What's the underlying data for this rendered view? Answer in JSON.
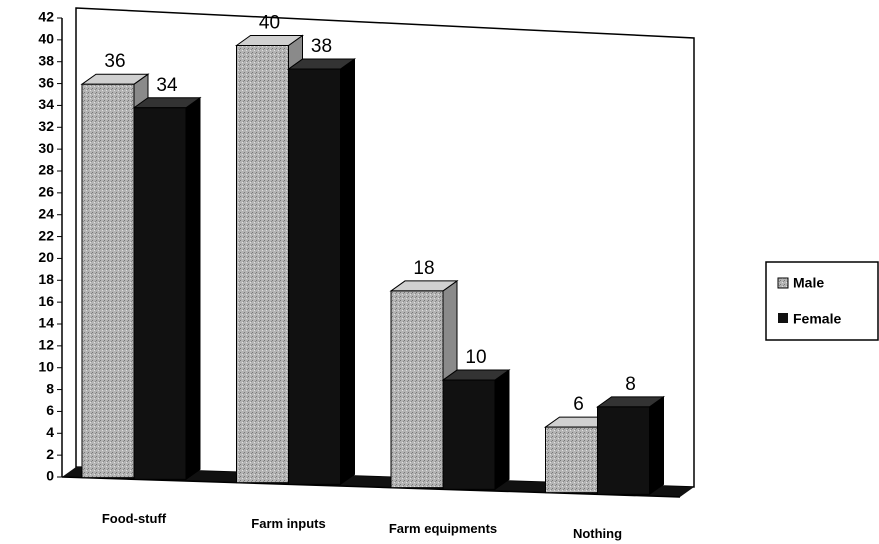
{
  "chart_data": {
    "type": "bar",
    "categories": [
      "Food-stuff",
      "Farm inputs",
      "Farm equipments",
      "Nothing"
    ],
    "series": [
      {
        "name": "Male",
        "color": "#b4b4b4",
        "values": [
          36,
          40,
          18,
          6
        ]
      },
      {
        "name": "Female",
        "color": "#111111",
        "values": [
          34,
          38,
          10,
          8
        ]
      }
    ],
    "ylim": [
      0,
      42
    ],
    "yticks": [
      0,
      2,
      4,
      6,
      8,
      10,
      12,
      14,
      16,
      18,
      20,
      22,
      24,
      26,
      28,
      30,
      32,
      34,
      36,
      38,
      40,
      42
    ],
    "legend": "right"
  }
}
